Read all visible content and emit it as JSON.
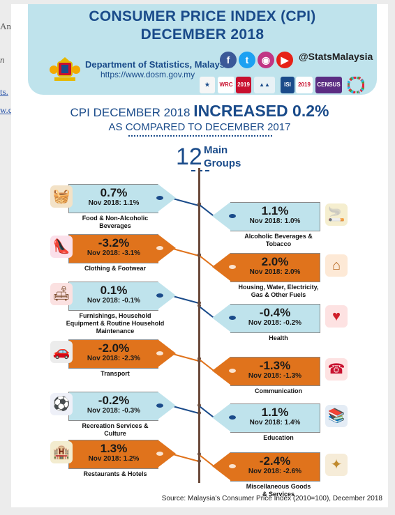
{
  "header": {
    "title_line1": "CONSUMER PRICE INDEX (CPI)",
    "title_line2": "DECEMBER 2018",
    "department": "Department of Statistics, Malaysia",
    "url": "https://www.dosm.gov.my",
    "social_handle": "@StatsMalaysia",
    "social_icons": [
      "facebook-icon",
      "twitter-icon",
      "instagram-icon",
      "youtube-icon"
    ],
    "logo_labels": [
      "WRC",
      "2019",
      "ISI",
      "2019",
      "CENSUS"
    ]
  },
  "headline": {
    "prefix": "CPI DECEMBER 2018",
    "emphasis": "INCREASED 0.2%",
    "sub": "AS COMPARED TO DECEMBER 2017"
  },
  "groups_count": "12",
  "groups_label_1": "Main",
  "groups_label_2": "Groups",
  "groups": [
    {
      "side": "left",
      "color": "blue",
      "value": "0.7%",
      "nov": "Nov 2018: 1.1%",
      "name1": "Food & Non-Alcoholic",
      "name2": "Beverages",
      "name3": "",
      "icon": "food-basket-icon"
    },
    {
      "side": "right",
      "color": "blue",
      "value": "1.1%",
      "nov": "Nov 2018: 1.0%",
      "name1": "Alcoholic Beverages &",
      "name2": "Tobacco",
      "name3": "",
      "icon": "cigarette-icon"
    },
    {
      "side": "left",
      "color": "orange",
      "value": "-3.2%",
      "nov": "Nov 2018: -3.1%",
      "name1": "Clothing & Footwear",
      "name2": "",
      "name3": "",
      "icon": "shoe-icon"
    },
    {
      "side": "right",
      "color": "orange",
      "value": "2.0%",
      "nov": "Nov 2018: 2.0%",
      "name1": "Housing, Water, Electricity,",
      "name2": "Gas & Other Fuels",
      "name3": "",
      "icon": "house-icon"
    },
    {
      "side": "left",
      "color": "blue",
      "value": "0.1%",
      "nov": "Nov 2018: -0.1%",
      "name1": "Furnishings, Household",
      "name2": "Equipment & Routine Household",
      "name3": "Maintenance",
      "icon": "sofa-icon"
    },
    {
      "side": "right",
      "color": "blue",
      "value": "-0.4%",
      "nov": "Nov 2018: -0.2%",
      "name1": "Health",
      "name2": "",
      "name3": "",
      "icon": "heart-icon"
    },
    {
      "side": "left",
      "color": "orange",
      "value": "-2.0%",
      "nov": "Nov 2018: -2.3%",
      "name1": "Transport",
      "name2": "",
      "name3": "",
      "icon": "car-icon"
    },
    {
      "side": "right",
      "color": "orange",
      "value": "-1.3%",
      "nov": "Nov 2018: -1.3%",
      "name1": "Communication",
      "name2": "",
      "name3": "",
      "icon": "phone-icon"
    },
    {
      "side": "left",
      "color": "blue",
      "value": "-0.2%",
      "nov": "Nov 2018: -0.3%",
      "name1": "Recreation Services &",
      "name2": "Culture",
      "name3": "",
      "icon": "sports-icon"
    },
    {
      "side": "right",
      "color": "blue",
      "value": "1.1%",
      "nov": "Nov 2018: 1.4%",
      "name1": "Education",
      "name2": "",
      "name3": "",
      "icon": "books-icon"
    },
    {
      "side": "left",
      "color": "orange",
      "value": "1.3%",
      "nov": "Nov 2018: 1.2%",
      "name1": "Restaurants & Hotels",
      "name2": "",
      "name3": "",
      "icon": "hotel-icon"
    },
    {
      "side": "right",
      "color": "orange",
      "value": "-2.4%",
      "nov": "Nov 2018: -2.6%",
      "name1": "Miscellaneous Goods",
      "name2": "& Services",
      "name3": "",
      "icon": "misc-icon"
    }
  ],
  "source": "Source: Malaysia's Consumer Price Index (2010=100), December 2018",
  "colors": {
    "blue": "#bfe3ec",
    "orange": "#e0731c",
    "navy": "#1a4b8a",
    "spine": "#6b4a3a"
  }
}
